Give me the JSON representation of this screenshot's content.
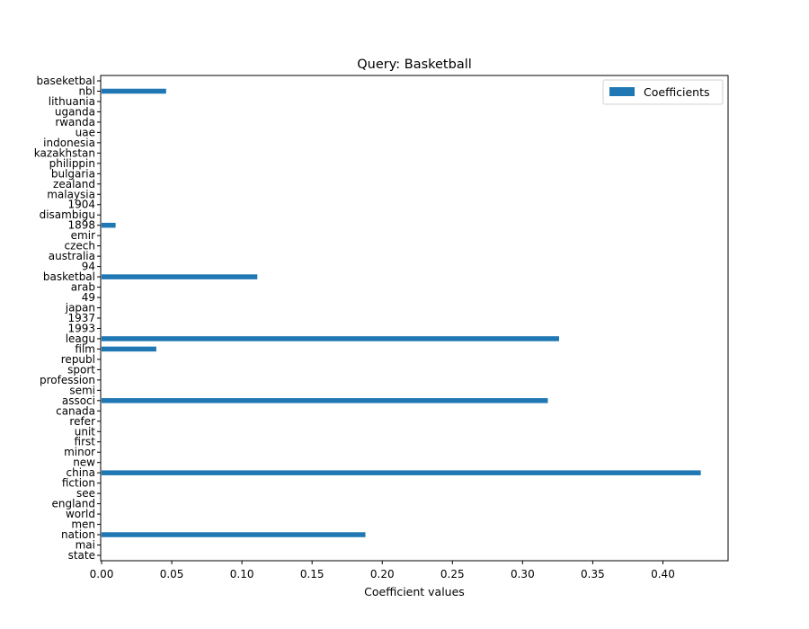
{
  "chart_data": {
    "type": "bar",
    "orientation": "horizontal",
    "title": "Query: Basketball",
    "xlabel": "Coefficient values",
    "ylabel": "",
    "xlim": [
      0,
      0.45
    ],
    "x_ticks": [
      "0.00",
      "0.05",
      "0.10",
      "0.15",
      "0.20",
      "0.25",
      "0.30",
      "0.35",
      "0.40"
    ],
    "x_tick_values": [
      0,
      0.05,
      0.1,
      0.15,
      0.2,
      0.25,
      0.3,
      0.35,
      0.4
    ],
    "grid": false,
    "legend_position": "top-right",
    "bar_color": "#1f77b4",
    "series": [
      {
        "name": "Coefficients",
        "categories": [
          "baseketbal",
          "nbl",
          "lithuania",
          "uganda",
          "rwanda",
          "uae",
          "indonesia",
          "kazakhstan",
          "philippin",
          "bulgaria",
          "zealand",
          "malaysia",
          "1904",
          "disambigu",
          "1898",
          "emir",
          "czech",
          "australia",
          "94",
          "basketbal",
          "arab",
          "49",
          "japan",
          "1937",
          "1993",
          "leagu",
          "film",
          "republ",
          "sport",
          "profession",
          "semi",
          "associ",
          "canada",
          "refer",
          "unit",
          "first",
          "minor",
          "new",
          "china",
          "fiction",
          "see",
          "england",
          "world",
          "men",
          "nation",
          "mai",
          "state"
        ],
        "values": [
          0,
          0.046,
          0,
          0,
          0,
          0,
          0,
          0,
          0,
          0,
          0,
          0,
          0,
          0,
          0.01,
          0,
          0,
          0,
          0,
          0.111,
          0,
          0,
          0,
          0,
          0,
          0.326,
          0.039,
          0,
          0,
          0,
          0,
          0.318,
          0,
          0,
          0,
          0,
          0,
          0,
          0.427,
          0,
          0,
          0,
          0,
          0,
          0.188,
          0,
          0
        ]
      }
    ]
  }
}
